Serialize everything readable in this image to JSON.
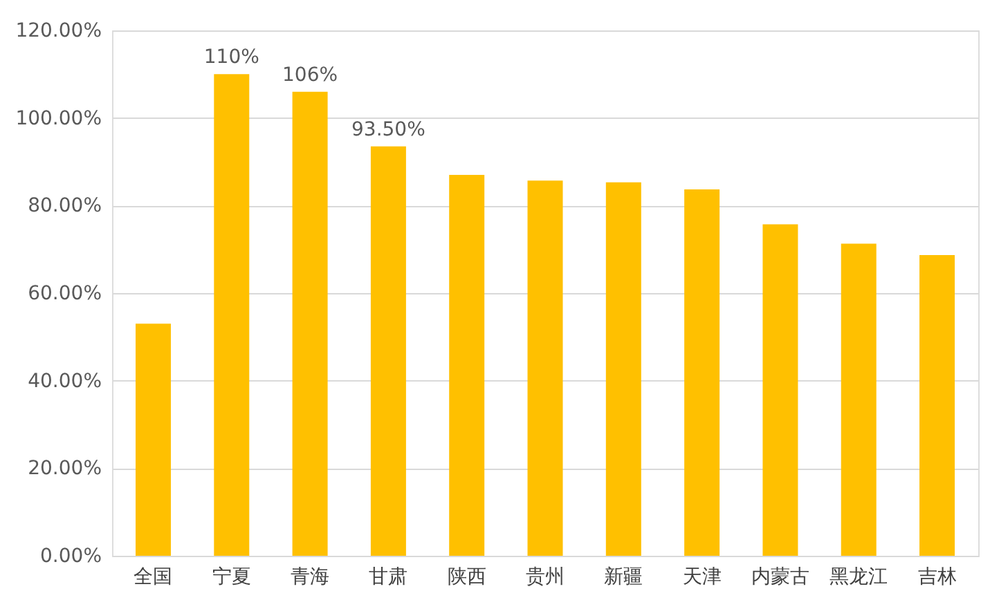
{
  "chart_data": {
    "type": "bar",
    "categories": [
      "全国",
      "宁夏",
      "青海",
      "甘肃",
      "陕西",
      "贵州",
      "新疆",
      "天津",
      "内蒙古",
      "黑龙江",
      "吉林"
    ],
    "values": [
      53,
      110,
      106,
      93.5,
      87,
      85.7,
      85.3,
      83.7,
      75.7,
      71.3,
      68.7
    ],
    "value_labels": [
      null,
      "110%",
      "106%",
      "93.50%",
      null,
      null,
      null,
      null,
      null,
      null,
      null
    ],
    "color": "#ffc000",
    "ylim": [
      0,
      120
    ],
    "yticks": [
      {
        "value": 0,
        "label": "0.00%"
      },
      {
        "value": 20,
        "label": "20.00%"
      },
      {
        "value": 40,
        "label": "40.00%"
      },
      {
        "value": 60,
        "label": "60.00%"
      },
      {
        "value": 80,
        "label": "80.00%"
      },
      {
        "value": 100,
        "label": "100.00%"
      },
      {
        "value": 120,
        "label": "120.00%"
      }
    ],
    "grid": "y"
  }
}
